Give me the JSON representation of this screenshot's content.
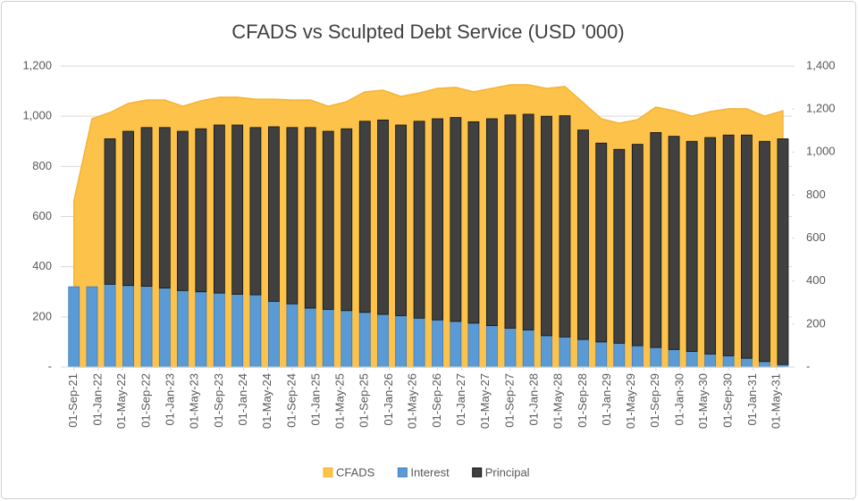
{
  "chart_data": {
    "type": "combo",
    "title": "CFADS vs Sculpted Debt Service (USD '000)",
    "stacked": true,
    "grid": true,
    "legend": "bottom",
    "x": [
      "2021-09-01",
      "2021-12-01",
      "2022-03-01",
      "2022-06-01",
      "2022-09-01",
      "2022-12-01",
      "2023-03-01",
      "2023-06-01",
      "2023-09-01",
      "2023-12-01",
      "2024-03-01",
      "2024-06-01",
      "2024-09-01",
      "2024-12-01",
      "2025-03-01",
      "2025-06-01",
      "2025-09-01",
      "2025-12-01",
      "2026-03-01",
      "2026-06-01",
      "2026-09-01",
      "2026-12-01",
      "2027-03-01",
      "2027-06-01",
      "2027-09-01",
      "2027-12-01",
      "2028-03-01",
      "2028-06-01",
      "2028-09-01",
      "2028-12-01",
      "2029-03-01",
      "2029-06-01",
      "2029-09-01",
      "2029-12-01",
      "2030-03-01",
      "2030-06-01",
      "2030-09-01",
      "2030-12-01",
      "2031-03-01",
      "2031-06-01"
    ],
    "xticks": [
      {
        "value": "2021-09-01",
        "label": "01-Sep-21"
      },
      {
        "value": "2022-01-01",
        "label": "01-Jan-22"
      },
      {
        "value": "2022-05-01",
        "label": "01-May-22"
      },
      {
        "value": "2022-09-01",
        "label": "01-Sep-22"
      },
      {
        "value": "2023-01-01",
        "label": "01-Jan-23"
      },
      {
        "value": "2023-05-01",
        "label": "01-May-23"
      },
      {
        "value": "2023-09-01",
        "label": "01-Sep-23"
      },
      {
        "value": "2024-01-01",
        "label": "01-Jan-24"
      },
      {
        "value": "2024-05-01",
        "label": "01-May-24"
      },
      {
        "value": "2024-09-01",
        "label": "01-Sep-24"
      },
      {
        "value": "2025-01-01",
        "label": "01-Jan-25"
      },
      {
        "value": "2025-05-01",
        "label": "01-May-25"
      },
      {
        "value": "2025-09-01",
        "label": "01-Sep-25"
      },
      {
        "value": "2026-01-01",
        "label": "01-Jan-26"
      },
      {
        "value": "2026-05-01",
        "label": "01-May-26"
      },
      {
        "value": "2026-09-01",
        "label": "01-Sep-26"
      },
      {
        "value": "2027-01-01",
        "label": "01-Jan-27"
      },
      {
        "value": "2027-05-01",
        "label": "01-May-27"
      },
      {
        "value": "2027-09-01",
        "label": "01-Sep-27"
      },
      {
        "value": "2028-01-01",
        "label": "01-Jan-28"
      },
      {
        "value": "2028-05-01",
        "label": "01-May-28"
      },
      {
        "value": "2028-09-01",
        "label": "01-Sep-28"
      },
      {
        "value": "2029-01-01",
        "label": "01-Jan-29"
      },
      {
        "value": "2029-05-01",
        "label": "01-May-29"
      },
      {
        "value": "2029-09-01",
        "label": "01-Sep-29"
      },
      {
        "value": "2030-01-01",
        "label": "01-Jan-30"
      },
      {
        "value": "2030-05-01",
        "label": "01-May-30"
      },
      {
        "value": "2030-09-01",
        "label": "01-Sep-30"
      },
      {
        "value": "2031-01-01",
        "label": "01-Jan-31"
      },
      {
        "value": "2031-05-01",
        "label": "01-May-31"
      }
    ],
    "ylim": [
      0,
      1200
    ],
    "yticks": [
      {
        "value": 0,
        "label": "-"
      },
      200,
      400,
      600,
      800,
      {
        "value": 1000,
        "label": "1,000"
      },
      {
        "value": 1200,
        "label": "1,200"
      }
    ],
    "y2lim": [
      0,
      1400
    ],
    "y2ticks": [
      {
        "value": 0,
        "label": "-"
      },
      200,
      400,
      600,
      800,
      {
        "value": 1000,
        "label": "1,000"
      },
      {
        "value": 1200,
        "label": "1,200"
      },
      {
        "value": 1400,
        "label": "1,400"
      }
    ],
    "series": [
      {
        "name": "CFADS",
        "type": "area",
        "axis": "y2",
        "color": "#fcc24a",
        "values": [
          773,
          1155,
          1184,
          1226,
          1242,
          1242,
          1213,
          1238,
          1255,
          1255,
          1246,
          1246,
          1242,
          1242,
          1213,
          1234,
          1280,
          1288,
          1259,
          1275,
          1296,
          1301,
          1280,
          1296,
          1313,
          1313,
          1296,
          1305,
          1230,
          1155,
          1134,
          1151,
          1209,
          1192,
          1167,
          1188,
          1201,
          1201,
          1167,
          1192
        ]
      },
      {
        "name": "Interest",
        "type": "bar",
        "color": "#5b9bd5",
        "values": [
          320,
          320,
          330,
          325,
          322,
          315,
          305,
          300,
          295,
          290,
          288,
          262,
          252,
          235,
          230,
          225,
          218,
          210,
          205,
          195,
          188,
          182,
          175,
          165,
          155,
          148,
          125,
          120,
          110,
          100,
          95,
          85,
          78,
          70,
          62,
          52,
          45,
          35,
          22,
          10
        ]
      },
      {
        "name": "Principal",
        "type": "bar",
        "color": "#404040",
        "values": [
          0,
          0,
          580,
          615,
          633,
          640,
          635,
          650,
          670,
          675,
          667,
          696,
          703,
          720,
          710,
          725,
          762,
          775,
          760,
          785,
          802,
          813,
          803,
          825,
          850,
          860,
          875,
          882,
          835,
          793,
          773,
          803,
          857,
          850,
          838,
          863,
          880,
          890,
          878,
          900
        ]
      }
    ]
  }
}
